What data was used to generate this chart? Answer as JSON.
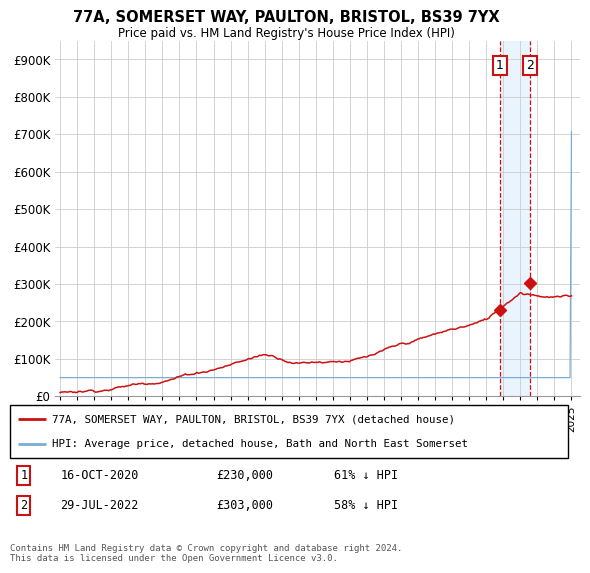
{
  "title": "77A, SOMERSET WAY, PAULTON, BRISTOL, BS39 7YX",
  "subtitle": "Price paid vs. HM Land Registry's House Price Index (HPI)",
  "ylim": [
    0,
    950000
  ],
  "yticks": [
    0,
    100000,
    200000,
    300000,
    400000,
    500000,
    600000,
    700000,
    800000,
    900000
  ],
  "ytick_labels": [
    "£0",
    "£100K",
    "£200K",
    "£300K",
    "£400K",
    "£500K",
    "£600K",
    "£700K",
    "£800K",
    "£900K"
  ],
  "background_color": "#ffffff",
  "grid_color": "#cccccc",
  "hpi_color": "#7aadd4",
  "price_color": "#cc1111",
  "transaction1_year": 2020.79,
  "transaction1_price": 230000,
  "transaction2_year": 2022.57,
  "transaction2_price": 303000,
  "legend_label_price": "77A, SOMERSET WAY, PAULTON, BRISTOL, BS39 7YX (detached house)",
  "legend_label_hpi": "HPI: Average price, detached house, Bath and North East Somerset",
  "shade_color": "#ddeeff",
  "dashed_color": "#cc1111",
  "footnote": "Contains HM Land Registry data © Crown copyright and database right 2024.\nThis data is licensed under the Open Government Licence v3.0.",
  "xstart": 1995,
  "xend": 2025
}
